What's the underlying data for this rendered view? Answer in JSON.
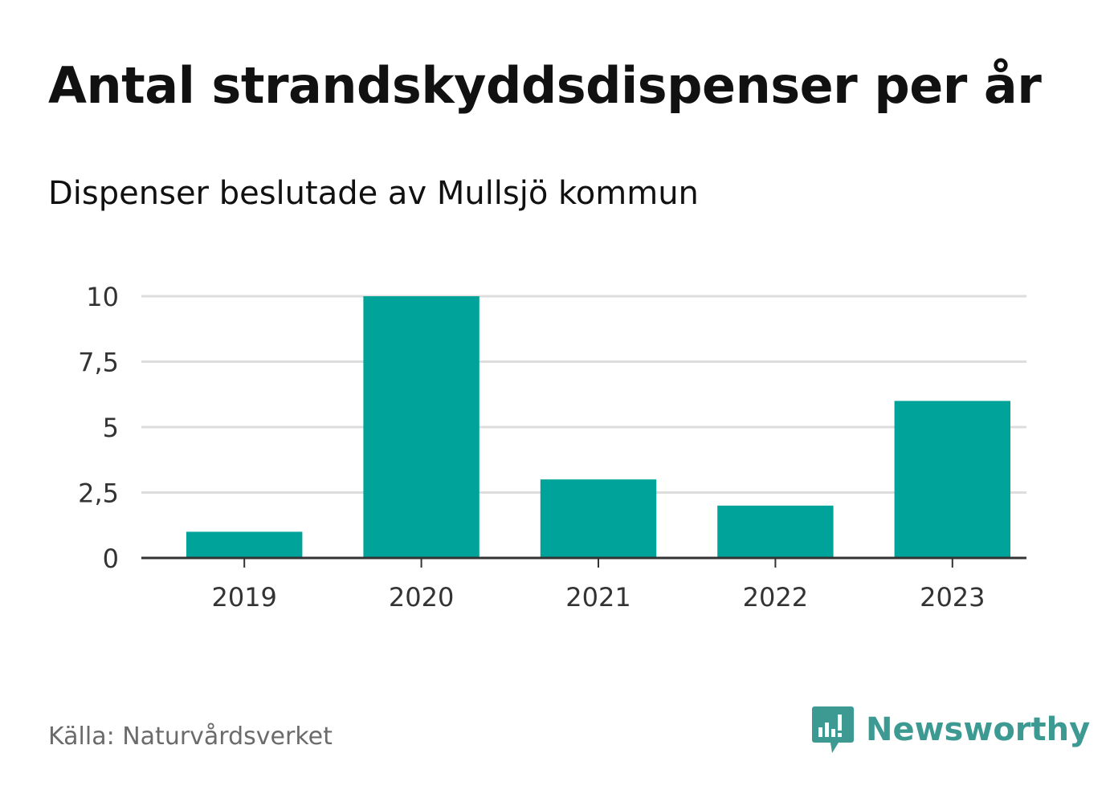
{
  "title": "Antal strandskyddsdispenser per år",
  "subtitle": "Dispenser beslutade av Mullsjö kommun",
  "source": "Källa: Naturvårdsverket",
  "brand": {
    "name": "Newsworthy",
    "icon": "newsworthy-logo-icon",
    "color": "#3d9a93"
  },
  "colors": {
    "bar": "#00a39a",
    "grid": "#dddddd",
    "axis": "#333333"
  },
  "chart_data": {
    "type": "bar",
    "title": "Antal strandskyddsdispenser per år",
    "subtitle": "Dispenser beslutade av Mullsjö kommun",
    "categories": [
      "2019",
      "2020",
      "2021",
      "2022",
      "2023"
    ],
    "values": [
      1,
      10,
      3,
      2,
      6
    ],
    "ylim": [
      0,
      10
    ],
    "yticks": [
      0,
      2.5,
      5,
      7.5,
      10
    ],
    "ytick_labels": [
      "0",
      "2,5",
      "5",
      "7,5",
      "10"
    ],
    "xlabel": "",
    "ylabel": "",
    "grid": true
  }
}
